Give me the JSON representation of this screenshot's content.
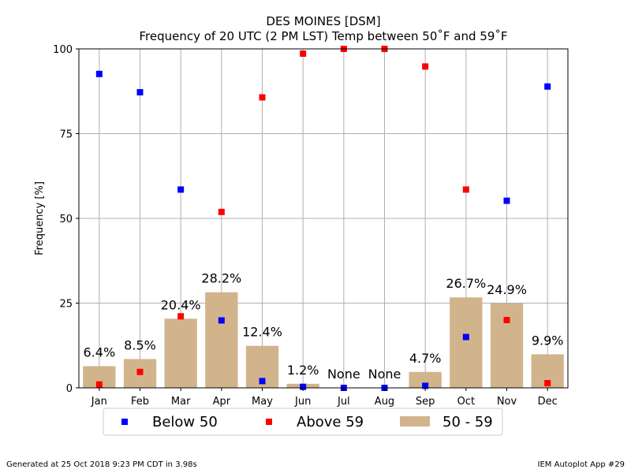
{
  "chart_data": {
    "type": "bar",
    "title": "DES MOINES [DSM]",
    "subtitle": "Frequency of 20 UTC (2 PM LST) Temp between 50˚F and 59˚F",
    "ylabel": "Frequency [%]",
    "xlabel": "",
    "ylim": [
      0,
      100
    ],
    "yticks": [
      0,
      25,
      50,
      75,
      100
    ],
    "grid": true,
    "legend_position": "bottom",
    "categories": [
      "Jan",
      "Feb",
      "Mar",
      "Apr",
      "May",
      "Jun",
      "Jul",
      "Aug",
      "Sep",
      "Oct",
      "Nov",
      "Dec"
    ],
    "bar_series": {
      "name": "50 - 59",
      "color": "#d2b48c",
      "values": [
        6.4,
        8.5,
        20.4,
        28.2,
        12.4,
        1.2,
        0,
        0,
        4.7,
        26.7,
        24.9,
        9.9
      ],
      "labels": [
        "6.4%",
        "8.5%",
        "20.4%",
        "28.2%",
        "12.4%",
        "1.2%",
        "None",
        "None",
        "4.7%",
        "26.7%",
        "24.9%",
        "9.9%"
      ]
    },
    "point_series": [
      {
        "name": "Below 50",
        "color": "#0000ff",
        "values": [
          92.6,
          87.2,
          58.5,
          19.9,
          2.0,
          0.3,
          0.0,
          0.0,
          0.6,
          15.0,
          55.2,
          88.9
        ]
      },
      {
        "name": "Above 59",
        "color": "#ff0000",
        "values": [
          1.0,
          4.7,
          21.1,
          51.9,
          85.7,
          98.6,
          100.0,
          100.0,
          94.8,
          58.5,
          20.0,
          1.4
        ]
      }
    ]
  },
  "footer": {
    "left": "Generated at 25 Oct 2018 9:23 PM CDT in 3.98s",
    "right": "IEM Autoplot App #29"
  }
}
